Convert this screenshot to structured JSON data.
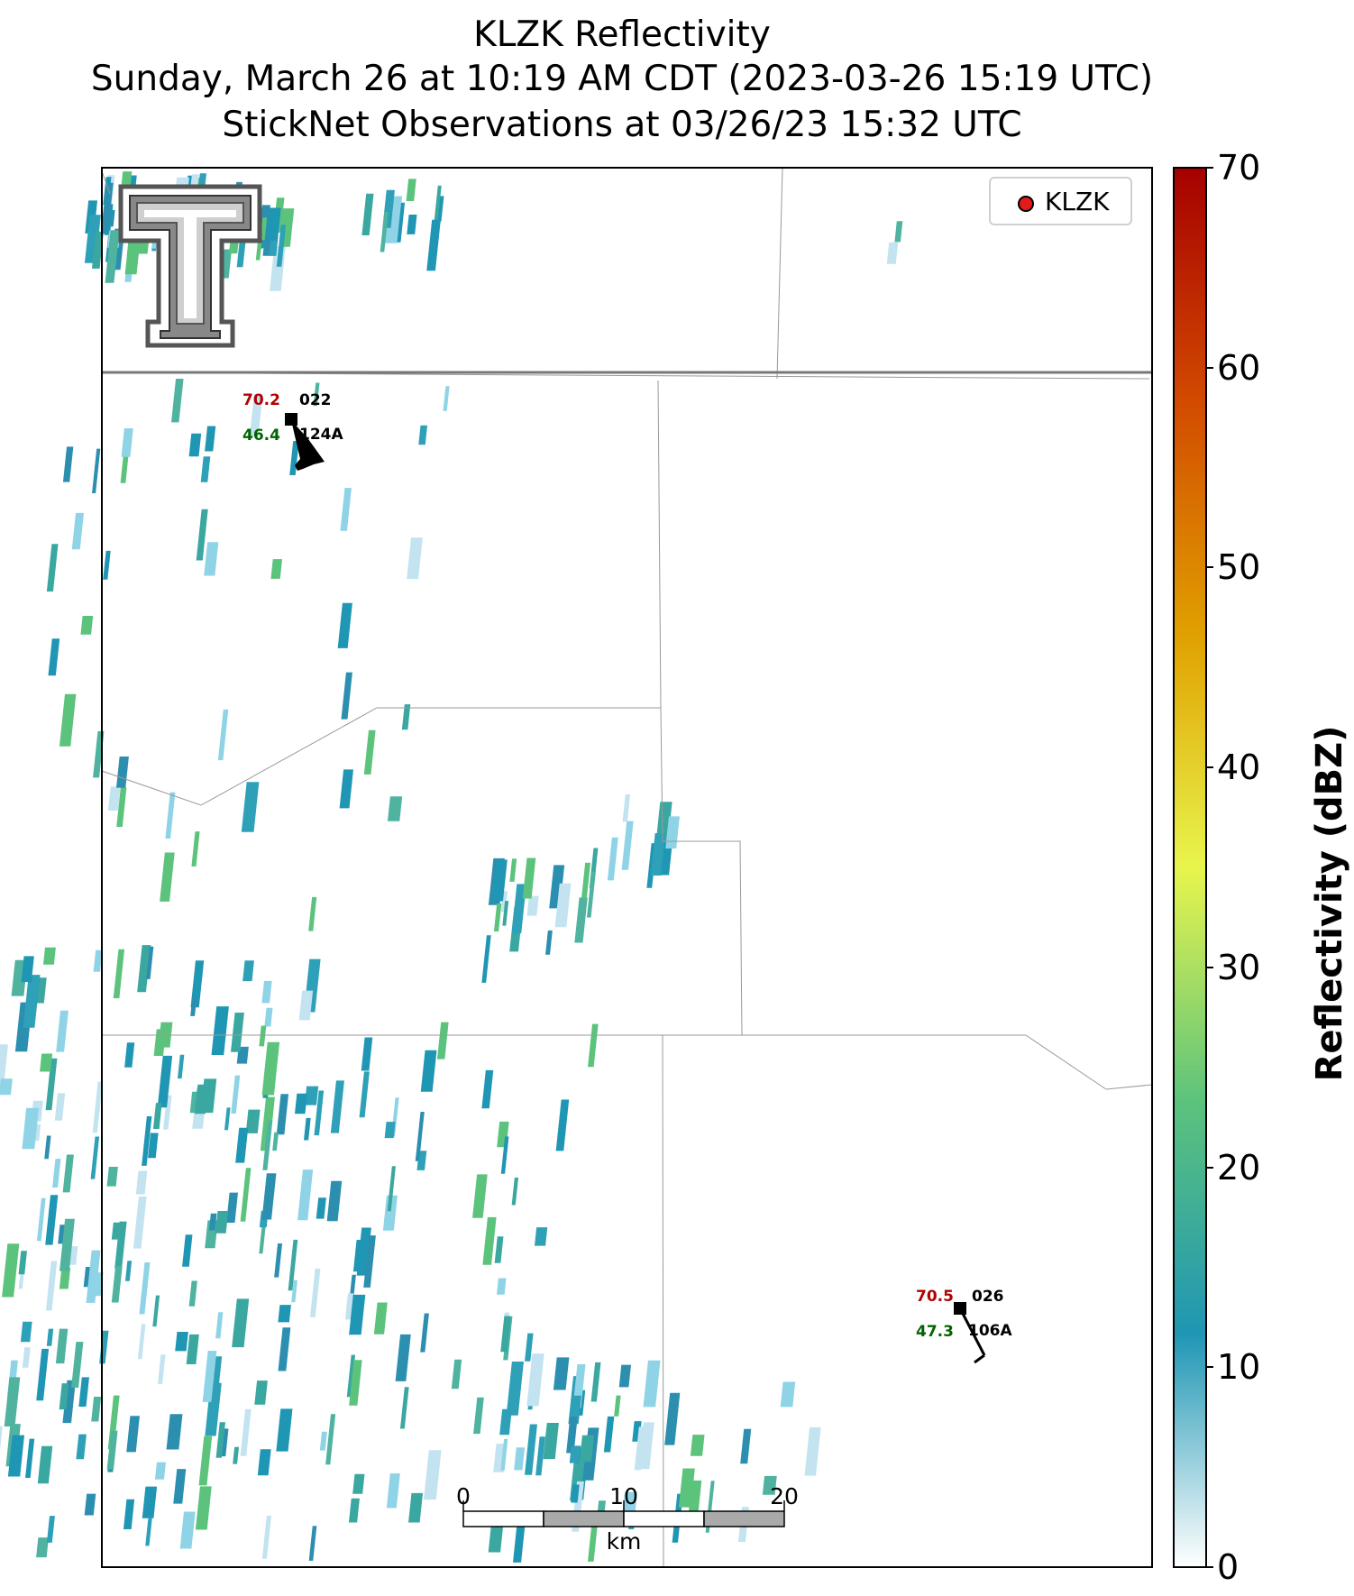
{
  "header": {
    "title": "KLZK Reflectivity",
    "subtitle": "Sunday, March 26 at 10:19 AM CDT (2023-03-26 15:19 UTC)",
    "obs_line": "StickNet Observations at 03/26/23 15:32 UTC"
  },
  "legend": {
    "label": "KLZK",
    "marker_color": "#e31a1c"
  },
  "colorbar": {
    "label": "Reflectivity (dBZ)",
    "ticks": [
      "70",
      "60",
      "50",
      "40",
      "30",
      "20",
      "10",
      "0"
    ],
    "colors": [
      "#ffffff",
      "#1f96b4",
      "#5cc37c",
      "#e8f54d",
      "#e0a000",
      "#d24a00",
      "#a50000"
    ]
  },
  "scalebar": {
    "ticks": [
      "0",
      "10",
      "20"
    ],
    "unit": "km"
  },
  "stations": [
    {
      "temp": "70.2",
      "dew": "46.4",
      "id": "022",
      "code": "124A"
    },
    {
      "temp": "70.5",
      "dew": "47.3",
      "id": "026",
      "code": "106A"
    }
  ],
  "logo": {
    "name": "Texas Tech double-T"
  }
}
